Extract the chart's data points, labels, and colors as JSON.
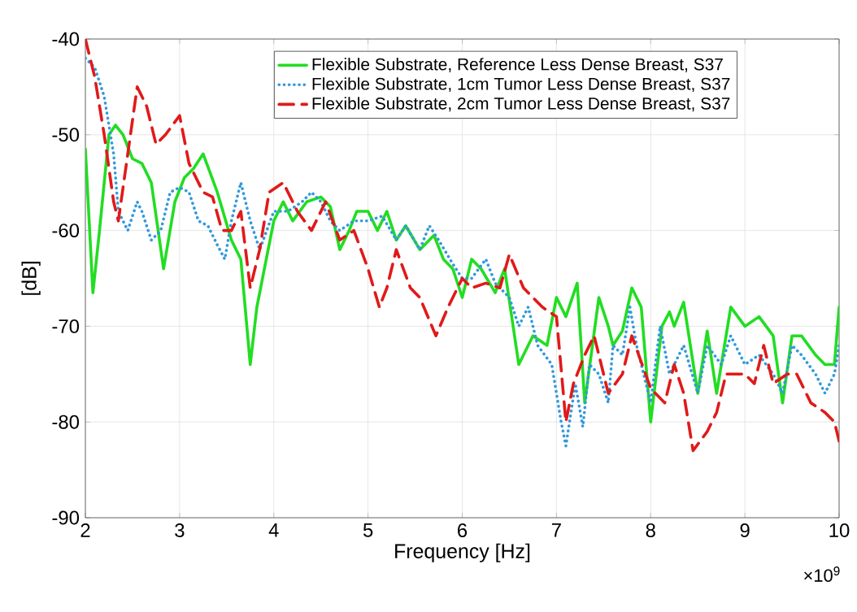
{
  "chart_data": {
    "type": "line",
    "xlabel": "Frequency [Hz]",
    "ylabel": "[dB]",
    "xlim": [
      2,
      10
    ],
    "xticks": [
      2,
      3,
      4,
      5,
      6,
      7,
      8,
      9,
      10
    ],
    "ylim": [
      -90,
      -40
    ],
    "yticks": [
      -90,
      -80,
      -70,
      -60,
      -50,
      -40
    ],
    "grid": true,
    "legend": "top right",
    "annotations": [
      "×10$^{9}$"
    ],
    "series": [
      {
        "name": "Flexible Substrate, Reference Less Dense Breast, S37",
        "color": "#22dd22",
        "line_style": "solid",
        "x": [
          2.0,
          2.08,
          2.15,
          2.25,
          2.32,
          2.4,
          2.5,
          2.6,
          2.7,
          2.83,
          2.95,
          3.05,
          3.15,
          3.25,
          3.4,
          3.55,
          3.65,
          3.75,
          3.82,
          3.9,
          4.0,
          4.1,
          4.2,
          4.35,
          4.5,
          4.6,
          4.7,
          4.8,
          4.88,
          5.0,
          5.1,
          5.2,
          5.3,
          5.4,
          5.55,
          5.7,
          5.8,
          5.9,
          6.0,
          6.1,
          6.2,
          6.35,
          6.45,
          6.6,
          6.75,
          6.9,
          7.0,
          7.1,
          7.22,
          7.3,
          7.45,
          7.55,
          7.6,
          7.7,
          7.8,
          7.9,
          8.0,
          8.12,
          8.2,
          8.25,
          8.35,
          8.5,
          8.6,
          8.7,
          8.85,
          9.0,
          9.15,
          9.3,
          9.4,
          9.5,
          9.6,
          9.75,
          9.85,
          9.95,
          10.0
        ],
        "values": [
          -51.5,
          -66.5,
          -60,
          -50,
          -49,
          -50,
          -52.5,
          -53,
          -55,
          -64,
          -57,
          -54.5,
          -53.5,
          -52,
          -56,
          -61,
          -63,
          -74,
          -68,
          -64,
          -59,
          -57,
          -59,
          -57,
          -56.5,
          -57.5,
          -62,
          -60,
          -58,
          -58,
          -60,
          -58,
          -61,
          -59.5,
          -62,
          -60.5,
          -63,
          -64,
          -67,
          -63,
          -64,
          -66.5,
          -64,
          -74,
          -71,
          -72,
          -67,
          -69,
          -65.5,
          -78,
          -67,
          -70,
          -72,
          -70.5,
          -66,
          -68,
          -80,
          -70,
          -68.5,
          -70,
          -67.5,
          -77,
          -70.5,
          -77,
          -68,
          -70,
          -69,
          -71,
          -78,
          -71,
          -71,
          -73,
          -74,
          -74,
          -68
        ]
      },
      {
        "name": "Flexible Substrate, 1cm Tumor Less Dense Breast, S37",
        "color": "#3399dd",
        "line_style": "dotted",
        "x": [
          2.0,
          2.1,
          2.2,
          2.3,
          2.35,
          2.45,
          2.55,
          2.6,
          2.7,
          2.8,
          2.9,
          3.0,
          3.1,
          3.2,
          3.3,
          3.4,
          3.48,
          3.55,
          3.6,
          3.65,
          3.75,
          3.85,
          4.0,
          4.15,
          4.3,
          4.4,
          4.5,
          4.6,
          4.7,
          4.85,
          5.0,
          5.15,
          5.3,
          5.4,
          5.55,
          5.65,
          5.75,
          5.9,
          6.0,
          6.1,
          6.25,
          6.35,
          6.5,
          6.6,
          6.7,
          6.8,
          6.95,
          7.05,
          7.1,
          7.2,
          7.28,
          7.35,
          7.45,
          7.55,
          7.6,
          7.7,
          7.78,
          7.85,
          8.0,
          8.1,
          8.2,
          8.35,
          8.5,
          8.6,
          8.75,
          8.85,
          9.0,
          9.15,
          9.3,
          9.4,
          9.5,
          9.6,
          9.75,
          9.85,
          9.95,
          10.0
        ],
        "values": [
          -42,
          -43,
          -46,
          -52,
          -58,
          -60,
          -57,
          -58,
          -61,
          -60,
          -56,
          -55.5,
          -56,
          -59,
          -59.5,
          -61.5,
          -63,
          -59,
          -57,
          -55,
          -59,
          -62,
          -58,
          -58,
          -57,
          -56,
          -57,
          -59,
          -60,
          -59,
          -59,
          -58.5,
          -61,
          -59.5,
          -62,
          -59.5,
          -61,
          -63.5,
          -65,
          -65,
          -63,
          -65.5,
          -67,
          -70,
          -68,
          -72,
          -74,
          -80,
          -82.5,
          -76,
          -80.5,
          -74,
          -75,
          -78,
          -72,
          -73,
          -68,
          -72,
          -78,
          -70,
          -75,
          -72,
          -77,
          -72,
          -74,
          -71,
          -74,
          -73,
          -75,
          -77,
          -72,
          -73,
          -75,
          -77,
          -75,
          -72
        ]
      },
      {
        "name": "Flexible Substrate, 2cm Tumor Less Dense Breast, S37",
        "color": "#e01a1a",
        "line_style": "dashed",
        "x": [
          2.0,
          2.1,
          2.2,
          2.3,
          2.35,
          2.45,
          2.55,
          2.65,
          2.75,
          2.85,
          3.0,
          3.1,
          3.25,
          3.35,
          3.45,
          3.55,
          3.65,
          3.75,
          3.85,
          3.95,
          4.1,
          4.25,
          4.4,
          4.55,
          4.7,
          4.85,
          5.0,
          5.12,
          5.2,
          5.3,
          5.45,
          5.55,
          5.72,
          5.85,
          6.0,
          6.1,
          6.25,
          6.4,
          6.5,
          6.65,
          6.85,
          7.0,
          7.1,
          7.18,
          7.3,
          7.4,
          7.55,
          7.7,
          7.8,
          8.0,
          8.15,
          8.25,
          8.35,
          8.45,
          8.6,
          8.7,
          8.8,
          9.0,
          9.1,
          9.2,
          9.3,
          9.45,
          9.55,
          9.7,
          9.85,
          9.95,
          10.0
        ],
        "values": [
          -40,
          -44,
          -50,
          -57,
          -59,
          -52,
          -45,
          -47,
          -51,
          -50,
          -48,
          -53,
          -56,
          -56.5,
          -60,
          -60,
          -58,
          -66,
          -62,
          -56,
          -55,
          -58,
          -60,
          -57,
          -61,
          -60,
          -64,
          -68,
          -66,
          -62,
          -66,
          -67,
          -71,
          -68,
          -65,
          -66,
          -65.5,
          -66,
          -62.5,
          -66,
          -68,
          -69,
          -80,
          -76,
          -73,
          -71,
          -77,
          -75,
          -71,
          -76.5,
          -78,
          -74,
          -77,
          -83,
          -81,
          -79,
          -75,
          -75,
          -76,
          -72,
          -76,
          -75,
          -75,
          -78,
          -79,
          -80,
          -82
        ]
      }
    ]
  }
}
